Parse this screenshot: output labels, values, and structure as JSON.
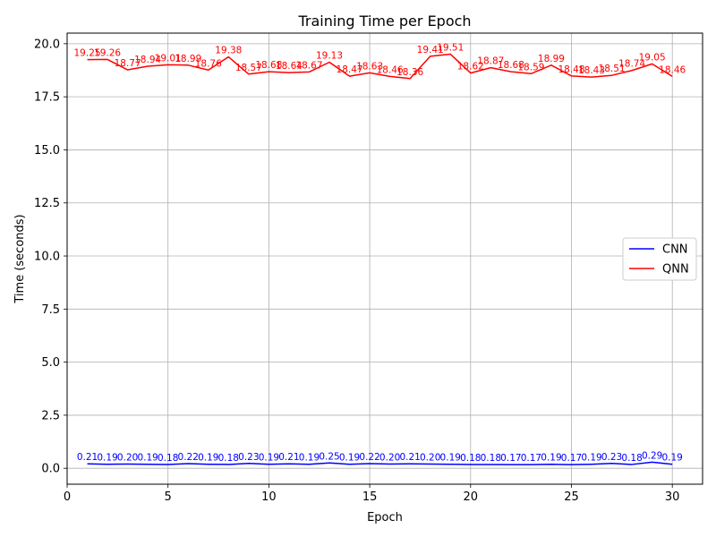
{
  "chart_data": {
    "type": "line",
    "title": "Training Time per Epoch",
    "xlabel": "Epoch",
    "ylabel": "Time (seconds)",
    "xlim": [
      0,
      31.5
    ],
    "ylim": [
      -0.75,
      20.5
    ],
    "xticks": [
      0,
      5,
      10,
      15,
      20,
      25,
      30
    ],
    "yticks": [
      0.0,
      2.5,
      5.0,
      7.5,
      10.0,
      12.5,
      15.0,
      17.5,
      20.0
    ],
    "ytick_labels": [
      "0.0",
      "2.5",
      "5.0",
      "7.5",
      "10.0",
      "12.5",
      "15.0",
      "17.5",
      "20.0"
    ],
    "grid": true,
    "legend_position": "center-right",
    "x": [
      1,
      2,
      3,
      4,
      5,
      6,
      7,
      8,
      9,
      10,
      11,
      12,
      13,
      14,
      15,
      16,
      17,
      18,
      19,
      20,
      21,
      22,
      23,
      24,
      25,
      26,
      27,
      28,
      29,
      30
    ],
    "series": [
      {
        "name": "CNN",
        "color": "#0000ff",
        "values": [
          0.21,
          0.19,
          0.2,
          0.19,
          0.18,
          0.22,
          0.19,
          0.18,
          0.23,
          0.19,
          0.21,
          0.19,
          0.25,
          0.19,
          0.22,
          0.2,
          0.21,
          0.2,
          0.19,
          0.18,
          0.18,
          0.17,
          0.17,
          0.19,
          0.17,
          0.19,
          0.23,
          0.18,
          0.29,
          0.19
        ]
      },
      {
        "name": "QNN",
        "color": "#ff0000",
        "values": [
          19.25,
          19.26,
          18.77,
          18.94,
          19.01,
          18.99,
          18.76,
          19.38,
          18.57,
          18.68,
          18.64,
          18.67,
          19.13,
          18.47,
          18.63,
          18.46,
          18.36,
          19.41,
          19.51,
          18.62,
          18.87,
          18.68,
          18.59,
          18.99,
          18.48,
          18.43,
          18.51,
          18.74,
          19.05,
          18.46
        ]
      }
    ]
  }
}
